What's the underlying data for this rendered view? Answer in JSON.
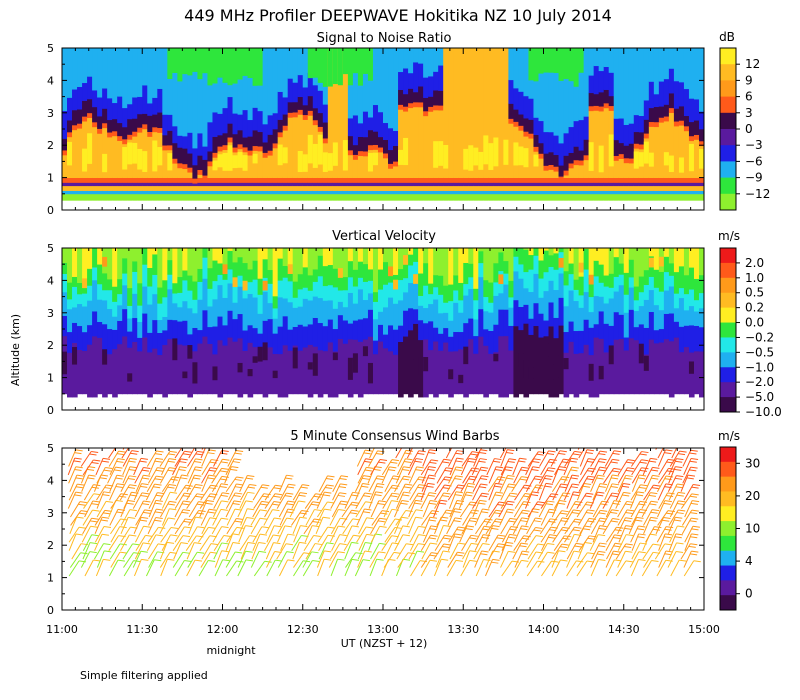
{
  "title": "449 MHz Profiler DEEPWAVE Hokitika NZ 10 July 2014",
  "ylabel": "Altitude (km)",
  "xlabel": "UT  (NZST + 12)",
  "midnight_label": "midnight",
  "footnote": "Simple filtering applied",
  "x_ticks": [
    "11:00",
    "11:30",
    "12:00",
    "12:30",
    "13:00",
    "13:30",
    "14:00",
    "14:30",
    "15:00"
  ],
  "y_ticks": [
    "0",
    "1",
    "2",
    "3",
    "4",
    "5"
  ],
  "colors": {
    "deep_purple": "#3a0a4a",
    "purple": "#5a1a9e",
    "blue": "#1f1fe6",
    "light_blue": "#1fb0f0",
    "cyan": "#22e8e8",
    "green": "#2ee63c",
    "yellow_green": "#8ef02e",
    "yellow": "#ffee22",
    "orange_yellow": "#ffbb22",
    "orange": "#ff9a1a",
    "red_orange": "#ff5a1a",
    "red": "#ee1a1a"
  },
  "chart_data": [
    {
      "type": "heatmap",
      "title": "Signal to Noise Ratio",
      "units": "dB",
      "xlabel": "UT  (NZST + 12)",
      "ylabel": "Altitude (km)",
      "x_range": [
        "11:00",
        "15:00"
      ],
      "ylim": [
        0,
        5
      ],
      "colorbar_ticks": [
        "12",
        "9",
        "6",
        "3",
        "0",
        "−3",
        "−6",
        "−9",
        "−12"
      ],
      "colorbar_values": [
        12,
        9,
        6,
        3,
        0,
        -3,
        -6,
        -9,
        -12
      ],
      "layers": [
        {
          "altitude_km": [
            0.3,
            0.6
          ],
          "typical_snr_db": -10
        },
        {
          "altitude_km": [
            0.6,
            1.0
          ],
          "typical_snr_db": 4
        },
        {
          "altitude_km": [
            1.0,
            2.5
          ],
          "typical_snr_db": 10
        },
        {
          "altitude_km": [
            2.5,
            3.5
          ],
          "typical_snr_db": 0
        },
        {
          "altitude_km": [
            3.5,
            5.0
          ],
          "typical_snr_db": -7
        }
      ]
    },
    {
      "type": "heatmap",
      "title": "Vertical Velocity",
      "units": "m/s",
      "xlabel": "UT  (NZST + 12)",
      "ylabel": "Altitude (km)",
      "x_range": [
        "11:00",
        "15:00"
      ],
      "ylim": [
        0,
        5
      ],
      "colorbar_ticks": [
        "2.0",
        "1.0",
        "0.5",
        "0.2",
        "0.0",
        "−0.2",
        "−0.5",
        "−1.0",
        "−2.0",
        "−5.0",
        "−10.0"
      ],
      "colorbar_values": [
        2.0,
        1.0,
        0.5,
        0.2,
        0.0,
        -0.2,
        -0.5,
        -1.0,
        -2.0,
        -5.0,
        -10.0
      ],
      "layers": [
        {
          "altitude_km": [
            0.5,
            2.0
          ],
          "typical_w_ms": -3.0
        },
        {
          "altitude_km": [
            2.0,
            3.0
          ],
          "typical_w_ms": -1.0
        },
        {
          "altitude_km": [
            3.0,
            4.0
          ],
          "typical_w_ms": -0.3
        },
        {
          "altitude_km": [
            4.0,
            5.0
          ],
          "typical_w_ms": 0.2
        }
      ]
    },
    {
      "type": "scatter",
      "title": "5 Minute Consensus Wind Barbs",
      "units": "m/s",
      "xlabel": "UT  (NZST + 12)",
      "ylabel": "Altitude (km)",
      "x_range": [
        "11:00",
        "15:00"
      ],
      "ylim": [
        0,
        5
      ],
      "colorbar_ticks": [
        "30",
        "20",
        "10",
        "4",
        "0"
      ],
      "colorbar_values": [
        30,
        20,
        10,
        4,
        0
      ],
      "speed_profile": [
        {
          "altitude_km": 1.2,
          "typical_speed_ms": 12
        },
        {
          "altitude_km": 2.0,
          "typical_speed_ms": 15
        },
        {
          "altitude_km": 3.0,
          "typical_speed_ms": 20
        },
        {
          "altitude_km": 4.0,
          "typical_speed_ms": 22
        },
        {
          "altitude_km": 5.0,
          "typical_speed_ms": 22
        }
      ]
    }
  ]
}
